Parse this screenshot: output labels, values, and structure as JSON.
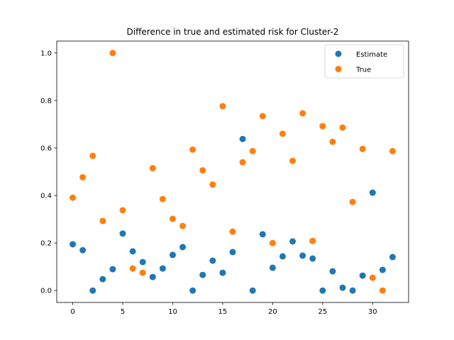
{
  "chart_data": {
    "type": "scatter",
    "title": "Difference in true and estimated risk for Cluster-2",
    "xlabel": "",
    "ylabel": "",
    "xlim": [
      -1.6,
      33.6
    ],
    "ylim": [
      -0.05,
      1.05
    ],
    "xticks": [
      0,
      5,
      10,
      15,
      20,
      25,
      30
    ],
    "yticks": [
      0.0,
      0.2,
      0.4,
      0.6,
      0.8,
      1.0
    ],
    "xtick_labels": [
      "0",
      "5",
      "10",
      "15",
      "20",
      "25",
      "30"
    ],
    "ytick_labels": [
      "0.0",
      "0.2",
      "0.4",
      "0.6",
      "0.8",
      "1.0"
    ],
    "grid": false,
    "legend_position": "top-right",
    "x": [
      0,
      1,
      2,
      3,
      4,
      5,
      6,
      7,
      8,
      9,
      10,
      11,
      12,
      13,
      14,
      15,
      16,
      17,
      18,
      19,
      20,
      21,
      22,
      23,
      24,
      25,
      26,
      27,
      28,
      29,
      30,
      31,
      32
    ],
    "series": [
      {
        "name": "Estimate",
        "color": "#1f77b4",
        "values": [
          0.195,
          0.17,
          0.0,
          0.048,
          0.09,
          0.24,
          0.165,
          0.12,
          0.057,
          0.093,
          0.15,
          0.183,
          0.0,
          0.066,
          0.126,
          0.075,
          0.162,
          0.638,
          0.0,
          0.237,
          0.096,
          0.144,
          0.207,
          0.147,
          0.135,
          0.0,
          0.081,
          0.012,
          0.0,
          0.063,
          0.412,
          0.087,
          0.141
        ]
      },
      {
        "name": "True",
        "color": "#ff7f0e",
        "values": [
          0.391,
          0.477,
          0.567,
          0.293,
          1.0,
          0.338,
          0.093,
          0.075,
          0.515,
          0.385,
          0.302,
          0.272,
          0.593,
          0.506,
          0.446,
          0.776,
          0.248,
          0.54,
          0.587,
          0.734,
          0.2,
          0.66,
          0.546,
          0.746,
          0.209,
          0.692,
          0.626,
          0.686,
          0.373,
          0.596,
          0.054,
          0.0,
          0.587
        ]
      }
    ]
  }
}
